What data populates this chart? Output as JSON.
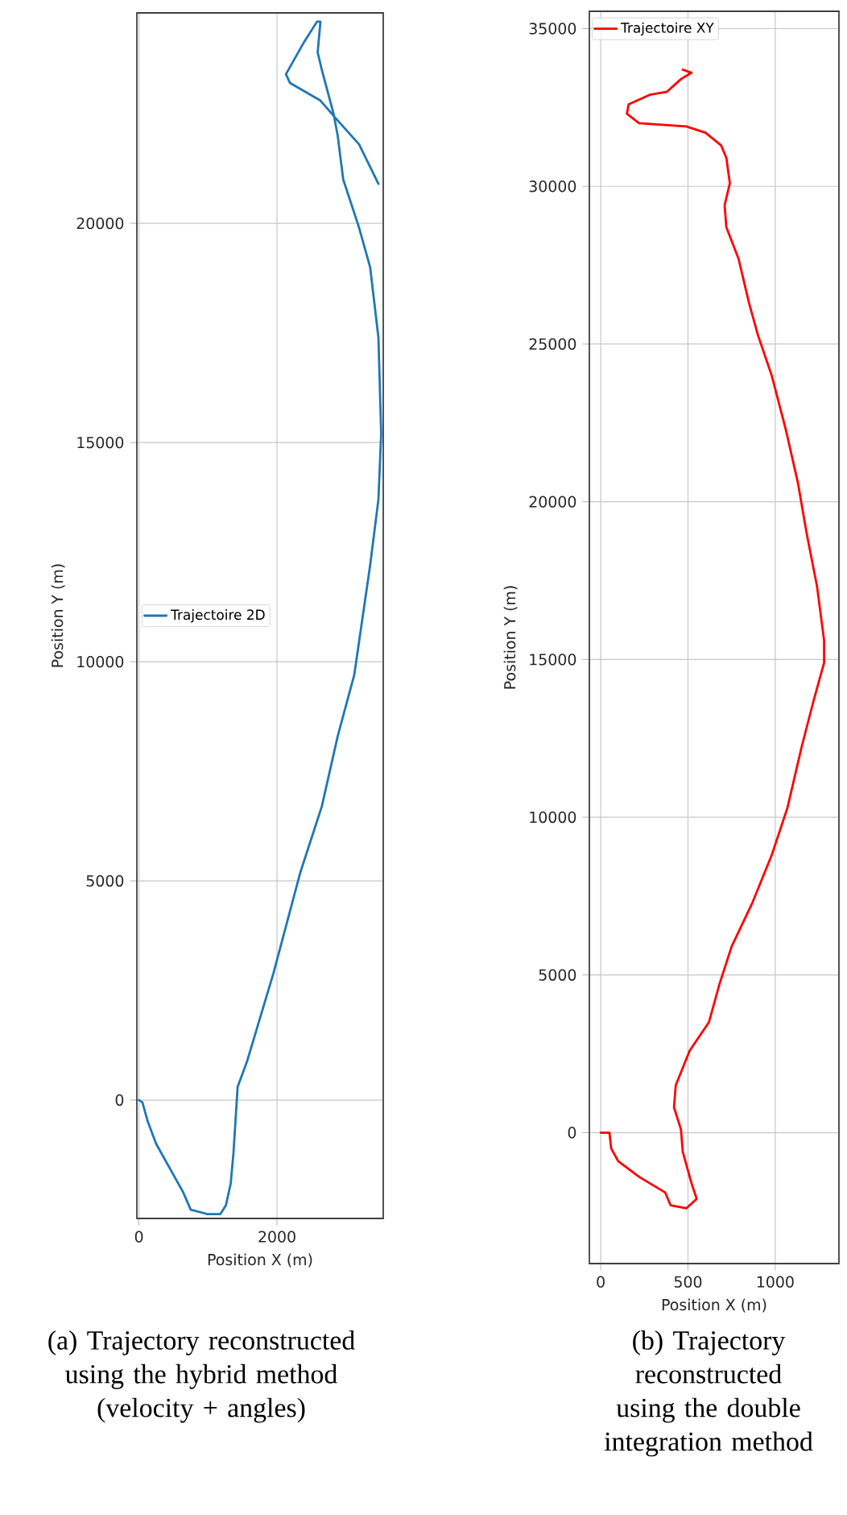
{
  "chart_data": [
    {
      "type": "line",
      "xlabel": "Position X (m)",
      "ylabel": "Position Y (m)",
      "xlim": [
        -30,
        3540
      ],
      "ylim": [
        -2700,
        24800
      ],
      "xticks": [
        0,
        2000
      ],
      "yticks": [
        0,
        5000,
        10000,
        15000,
        20000
      ],
      "grid": true,
      "legend": "left",
      "series": [
        {
          "name": "Trajectoire 2D",
          "color": "#1f77b4",
          "x": [
            0,
            50,
            130,
            250,
            640,
            750,
            990,
            1180,
            1260,
            1330,
            1370,
            1430,
            1570,
            1950,
            2340,
            2650,
            2880,
            3120,
            3350,
            3470,
            3510,
            3470,
            3350,
            3190,
            2960,
            2880,
            2820,
            2650,
            2590,
            2630,
            2580,
            2380,
            2130,
            2190,
            2630,
            2850,
            3190,
            3470
          ],
          "values": [
            0,
            -50,
            -500,
            -1000,
            -2100,
            -2500,
            -2600,
            -2600,
            -2400,
            -1900,
            -1200,
            300,
            900,
            2900,
            5200,
            6700,
            8300,
            9700,
            12200,
            13700,
            15200,
            17400,
            19000,
            19900,
            21000,
            22000,
            22500,
            23500,
            23900,
            24600,
            24600,
            24100,
            23400,
            23200,
            22800,
            22400,
            21800,
            20900
          ]
        }
      ],
      "annotations": [
        "(a) Trajectory reconstructed using the hybrid method (velocity + angles)"
      ]
    },
    {
      "type": "line",
      "xlabel": "Position X (m)",
      "ylabel": "Position Y (m)",
      "xlim": [
        -65,
        1365
      ],
      "ylim": [
        -4150,
        35550
      ],
      "xticks": [
        0,
        500,
        1000
      ],
      "yticks": [
        0,
        5000,
        10000,
        15000,
        20000,
        25000,
        30000,
        35000
      ],
      "grid": true,
      "legend": "top left",
      "series": [
        {
          "name": "Trajectoire XY",
          "color": "#ff0000",
          "x": [
            0,
            50,
            60,
            100,
            220,
            370,
            400,
            490,
            550,
            520,
            470,
            460,
            420,
            430,
            510,
            620,
            680,
            750,
            870,
            980,
            1070,
            1150,
            1220,
            1280,
            1280,
            1240,
            1180,
            1130,
            1060,
            980,
            900,
            850,
            790,
            720,
            710,
            740,
            720,
            690,
            600,
            490,
            220,
            150,
            160,
            280,
            380,
            460,
            520,
            470
          ],
          "values": [
            0,
            0,
            -500,
            -900,
            -1400,
            -1900,
            -2300,
            -2400,
            -2100,
            -1600,
            -600,
            100,
            800,
            1500,
            2600,
            3500,
            4700,
            5900,
            7300,
            8800,
            10300,
            12200,
            13700,
            14900,
            15600,
            17300,
            19000,
            20600,
            22300,
            24000,
            25300,
            26300,
            27700,
            28700,
            29400,
            30100,
            30900,
            31300,
            31700,
            31900,
            32000,
            32300,
            32600,
            32900,
            33000,
            33400,
            33600,
            33700
          ]
        }
      ],
      "annotations": [
        "(b) Trajectory reconstructed using the double integration method"
      ]
    }
  ]
}
